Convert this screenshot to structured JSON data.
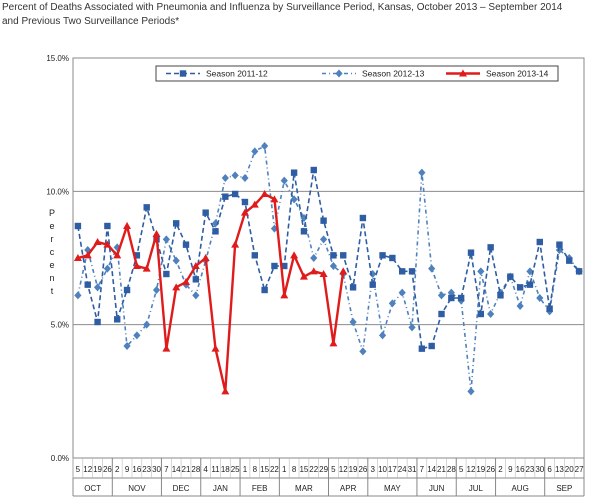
{
  "chart_data": {
    "type": "line",
    "title_line1": "Percent of Deaths Associated with Pneumonia and Influenza by Surveillance Period, Kansas, October 2013 – September 2014",
    "title_line2": "and Previous Two Surveillance Periods*",
    "ylabel": "Percent",
    "ylim": [
      0,
      15
    ],
    "y_ticks": [
      "0.0%",
      "5.0%",
      "10.0%",
      "15.0%"
    ],
    "y_tick_values": [
      0,
      5,
      10,
      15
    ],
    "x_tick_labels": [
      "5",
      "12",
      "19",
      "26",
      "2",
      "9",
      "16",
      "23",
      "30",
      "7",
      "14",
      "21",
      "28",
      "4",
      "11",
      "18",
      "25",
      "1",
      "8",
      "15",
      "22",
      "1",
      "8",
      "15",
      "22",
      "29",
      "5",
      "12",
      "19",
      "26",
      "3",
      "10",
      "17",
      "24",
      "31",
      "7",
      "14",
      "21",
      "28",
      "5",
      "12",
      "19",
      "26",
      "2",
      "9",
      "16",
      "23",
      "30",
      "6",
      "13",
      "20",
      "27"
    ],
    "months": [
      {
        "label": "OCT",
        "weeks": 4
      },
      {
        "label": "NOV",
        "weeks": 5
      },
      {
        "label": "DEC",
        "weeks": 4
      },
      {
        "label": "JAN",
        "weeks": 4
      },
      {
        "label": "FEB",
        "weeks": 4
      },
      {
        "label": "MAR",
        "weeks": 5
      },
      {
        "label": "APR",
        "weeks": 4
      },
      {
        "label": "MAY",
        "weeks": 5
      },
      {
        "label": "JUN",
        "weeks": 4
      },
      {
        "label": "JUL",
        "weeks": 4
      },
      {
        "label": "AUG",
        "weeks": 5
      },
      {
        "label": "SEP",
        "weeks": 4
      }
    ],
    "series": [
      {
        "name": "Season 2011-12",
        "color": "#2e5da3",
        "marker": "square",
        "dash": "5,3",
        "values": [
          8.7,
          6.5,
          5.1,
          8.7,
          5.2,
          6.3,
          7.6,
          9.4,
          8.2,
          6.9,
          8.8,
          8.0,
          6.7,
          9.2,
          8.5,
          9.8,
          9.9,
          9.6,
          7.6,
          6.3,
          7.2,
          7.2,
          10.7,
          8.5,
          10.8,
          8.9,
          7.6,
          7.6,
          6.4,
          9.0,
          6.5,
          7.6,
          7.5,
          7.0,
          7.0,
          4.1,
          4.2,
          5.4,
          6.0,
          6.0,
          7.7,
          5.4,
          7.9,
          6.1,
          6.8,
          6.4,
          6.5,
          8.1,
          5.6,
          8.0,
          7.4,
          7.0
        ]
      },
      {
        "name": "Season 2012-13",
        "color": "#4f81bd",
        "marker": "diamond",
        "dash": "4,3,1,3",
        "values": [
          6.1,
          7.8,
          6.4,
          7.1,
          7.9,
          4.2,
          4.6,
          5.0,
          6.3,
          8.2,
          7.4,
          6.5,
          6.1,
          7.4,
          8.8,
          10.5,
          10.6,
          10.5,
          11.5,
          11.7,
          8.6,
          10.4,
          9.7,
          9.0,
          7.5,
          8.2,
          7.2,
          6.9,
          5.1,
          4.0,
          6.9,
          4.6,
          5.8,
          6.2,
          4.9,
          10.7,
          7.1,
          6.1,
          6.2,
          5.9,
          2.5,
          7.0,
          5.4,
          6.2,
          6.8,
          5.7,
          7.0,
          6.0,
          5.5,
          7.8,
          7.5,
          7.0
        ]
      },
      {
        "name": "Season 2013-14",
        "color": "#e01b1b",
        "marker": "triangle",
        "dash": "",
        "values": [
          7.5,
          7.6,
          8.1,
          8.0,
          7.6,
          8.7,
          7.2,
          7.1,
          8.4,
          4.1,
          6.4,
          6.6,
          7.2,
          7.5,
          4.1,
          2.5,
          8.0,
          9.2,
          9.5,
          9.9,
          9.7,
          6.1,
          7.6,
          6.8,
          7.0,
          6.9,
          4.3,
          7.0,
          null,
          null,
          null,
          null,
          null,
          null,
          null,
          null,
          null,
          null,
          null,
          null,
          null,
          null,
          null,
          null,
          null,
          null,
          null,
          null,
          null,
          null,
          null,
          null
        ]
      }
    ]
  }
}
